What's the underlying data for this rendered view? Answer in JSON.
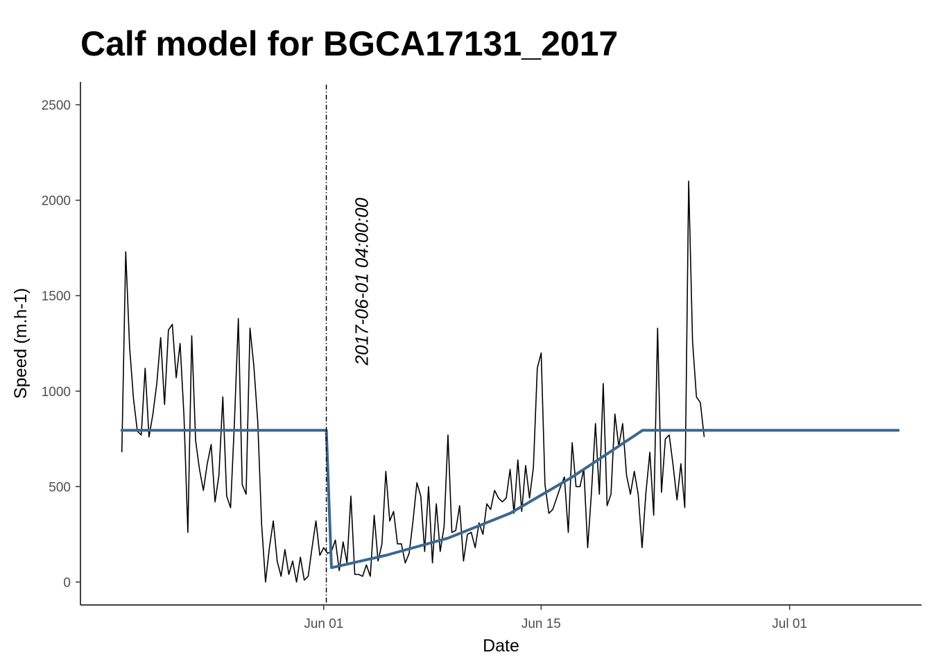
{
  "chart_data": {
    "type": "line",
    "title": "Calf model for BGCA17131_2017",
    "xlabel": "Date",
    "ylabel": "Speed (m.h-1)",
    "x_ticks": [
      {
        "date": "2017-06-01",
        "label": "Jun 01"
      },
      {
        "date": "2017-06-15",
        "label": "Jun 15"
      },
      {
        "date": "2017-07-01",
        "label": "Jul 01"
      }
    ],
    "y_ticks": [
      0,
      500,
      1000,
      1500,
      2000,
      2500
    ],
    "xlim": [
      "2017-05-16T08:00:00",
      "2017-07-09T12:00:00"
    ],
    "ylim": [
      -120,
      2620
    ],
    "grid": false,
    "legend": "none",
    "annotation": {
      "date": "2017-06-01T04:00:00",
      "label": "2017-06-01 04:00:00",
      "style": "dash-dot vertical line"
    },
    "series": [
      {
        "style": "observed",
        "color": "#000000",
        "points": [
          [
            "2017-05-19T00:00:00",
            680
          ],
          [
            "2017-05-19T06:00:00",
            1730
          ],
          [
            "2017-05-19T12:00:00",
            1230
          ],
          [
            "2017-05-19T18:00:00",
            960
          ],
          [
            "2017-05-20T00:00:00",
            790
          ],
          [
            "2017-05-20T06:00:00",
            770
          ],
          [
            "2017-05-20T12:00:00",
            1120
          ],
          [
            "2017-05-20T18:00:00",
            760
          ],
          [
            "2017-05-21T00:00:00",
            880
          ],
          [
            "2017-05-21T06:00:00",
            1040
          ],
          [
            "2017-05-21T12:00:00",
            1280
          ],
          [
            "2017-05-21T18:00:00",
            930
          ],
          [
            "2017-05-22T00:00:00",
            1320
          ],
          [
            "2017-05-22T06:00:00",
            1350
          ],
          [
            "2017-05-22T12:00:00",
            1070
          ],
          [
            "2017-05-22T18:00:00",
            1250
          ],
          [
            "2017-05-23T00:00:00",
            870
          ],
          [
            "2017-05-23T06:00:00",
            260
          ],
          [
            "2017-05-23T12:00:00",
            1290
          ],
          [
            "2017-05-23T18:00:00",
            740
          ],
          [
            "2017-05-24T00:00:00",
            590
          ],
          [
            "2017-05-24T06:00:00",
            480
          ],
          [
            "2017-05-24T12:00:00",
            620
          ],
          [
            "2017-05-24T18:00:00",
            720
          ],
          [
            "2017-05-25T00:00:00",
            420
          ],
          [
            "2017-05-25T06:00:00",
            560
          ],
          [
            "2017-05-25T12:00:00",
            970
          ],
          [
            "2017-05-25T18:00:00",
            450
          ],
          [
            "2017-05-26T00:00:00",
            390
          ],
          [
            "2017-05-26T06:00:00",
            840
          ],
          [
            "2017-05-26T12:00:00",
            1380
          ],
          [
            "2017-05-26T18:00:00",
            510
          ],
          [
            "2017-05-27T00:00:00",
            460
          ],
          [
            "2017-05-27T06:00:00",
            1330
          ],
          [
            "2017-05-27T12:00:00",
            1130
          ],
          [
            "2017-05-27T18:00:00",
            840
          ],
          [
            "2017-05-28T00:00:00",
            300
          ],
          [
            "2017-05-28T06:00:00",
            0
          ],
          [
            "2017-05-28T12:00:00",
            180
          ],
          [
            "2017-05-28T18:00:00",
            320
          ],
          [
            "2017-05-29T00:00:00",
            110
          ],
          [
            "2017-05-29T06:00:00",
            30
          ],
          [
            "2017-05-29T12:00:00",
            170
          ],
          [
            "2017-05-29T18:00:00",
            40
          ],
          [
            "2017-05-30T00:00:00",
            110
          ],
          [
            "2017-05-30T06:00:00",
            0
          ],
          [
            "2017-05-30T12:00:00",
            130
          ],
          [
            "2017-05-30T18:00:00",
            10
          ],
          [
            "2017-05-31T00:00:00",
            30
          ],
          [
            "2017-05-31T06:00:00",
            180
          ],
          [
            "2017-05-31T12:00:00",
            320
          ],
          [
            "2017-05-31T18:00:00",
            140
          ],
          [
            "2017-06-01T00:00:00",
            180
          ],
          [
            "2017-06-01T06:00:00",
            150
          ],
          [
            "2017-06-01T12:00:00",
            160
          ],
          [
            "2017-06-01T18:00:00",
            220
          ],
          [
            "2017-06-02T00:00:00",
            60
          ],
          [
            "2017-06-02T06:00:00",
            210
          ],
          [
            "2017-06-02T12:00:00",
            100
          ],
          [
            "2017-06-02T18:00:00",
            450
          ],
          [
            "2017-06-03T00:00:00",
            40
          ],
          [
            "2017-06-03T06:00:00",
            40
          ],
          [
            "2017-06-03T12:00:00",
            30
          ],
          [
            "2017-06-03T18:00:00",
            90
          ],
          [
            "2017-06-04T00:00:00",
            30
          ],
          [
            "2017-06-04T06:00:00",
            350
          ],
          [
            "2017-06-04T12:00:00",
            110
          ],
          [
            "2017-06-04T18:00:00",
            200
          ],
          [
            "2017-06-05T00:00:00",
            580
          ],
          [
            "2017-06-05T06:00:00",
            320
          ],
          [
            "2017-06-05T12:00:00",
            370
          ],
          [
            "2017-06-05T18:00:00",
            200
          ],
          [
            "2017-06-06T00:00:00",
            200
          ],
          [
            "2017-06-06T06:00:00",
            100
          ],
          [
            "2017-06-06T12:00:00",
            150
          ],
          [
            "2017-06-06T18:00:00",
            320
          ],
          [
            "2017-06-07T00:00:00",
            520
          ],
          [
            "2017-06-07T06:00:00",
            450
          ],
          [
            "2017-06-07T12:00:00",
            160
          ],
          [
            "2017-06-07T18:00:00",
            500
          ],
          [
            "2017-06-08T00:00:00",
            100
          ],
          [
            "2017-06-08T06:00:00",
            410
          ],
          [
            "2017-06-08T12:00:00",
            160
          ],
          [
            "2017-06-08T18:00:00",
            290
          ],
          [
            "2017-06-09T00:00:00",
            770
          ],
          [
            "2017-06-09T06:00:00",
            260
          ],
          [
            "2017-06-09T12:00:00",
            270
          ],
          [
            "2017-06-09T18:00:00",
            400
          ],
          [
            "2017-06-10T00:00:00",
            110
          ],
          [
            "2017-06-10T06:00:00",
            250
          ],
          [
            "2017-06-10T12:00:00",
            260
          ],
          [
            "2017-06-10T18:00:00",
            180
          ],
          [
            "2017-06-11T00:00:00",
            310
          ],
          [
            "2017-06-11T06:00:00",
            250
          ],
          [
            "2017-06-11T12:00:00",
            410
          ],
          [
            "2017-06-11T18:00:00",
            380
          ],
          [
            "2017-06-12T00:00:00",
            480
          ],
          [
            "2017-06-12T06:00:00",
            440
          ],
          [
            "2017-06-12T12:00:00",
            420
          ],
          [
            "2017-06-12T18:00:00",
            440
          ],
          [
            "2017-06-13T00:00:00",
            590
          ],
          [
            "2017-06-13T06:00:00",
            360
          ],
          [
            "2017-06-13T12:00:00",
            640
          ],
          [
            "2017-06-13T18:00:00",
            370
          ],
          [
            "2017-06-14T00:00:00",
            610
          ],
          [
            "2017-06-14T06:00:00",
            440
          ],
          [
            "2017-06-14T12:00:00",
            600
          ],
          [
            "2017-06-14T18:00:00",
            1120
          ],
          [
            "2017-06-15T00:00:00",
            1200
          ],
          [
            "2017-06-15T06:00:00",
            510
          ],
          [
            "2017-06-15T12:00:00",
            360
          ],
          [
            "2017-06-15T18:00:00",
            380
          ],
          [
            "2017-06-16T00:00:00",
            440
          ],
          [
            "2017-06-16T06:00:00",
            500
          ],
          [
            "2017-06-16T12:00:00",
            550
          ],
          [
            "2017-06-16T18:00:00",
            260
          ],
          [
            "2017-06-17T00:00:00",
            730
          ],
          [
            "2017-06-17T06:00:00",
            500
          ],
          [
            "2017-06-17T12:00:00",
            500
          ],
          [
            "2017-06-17T18:00:00",
            590
          ],
          [
            "2017-06-18T00:00:00",
            180
          ],
          [
            "2017-06-18T06:00:00",
            480
          ],
          [
            "2017-06-18T12:00:00",
            830
          ],
          [
            "2017-06-18T18:00:00",
            460
          ],
          [
            "2017-06-19T00:00:00",
            1040
          ],
          [
            "2017-06-19T06:00:00",
            400
          ],
          [
            "2017-06-19T12:00:00",
            460
          ],
          [
            "2017-06-19T18:00:00",
            880
          ],
          [
            "2017-06-20T00:00:00",
            710
          ],
          [
            "2017-06-20T06:00:00",
            830
          ],
          [
            "2017-06-20T12:00:00",
            560
          ],
          [
            "2017-06-20T18:00:00",
            460
          ],
          [
            "2017-06-21T00:00:00",
            580
          ],
          [
            "2017-06-21T06:00:00",
            460
          ],
          [
            "2017-06-21T12:00:00",
            180
          ],
          [
            "2017-06-21T18:00:00",
            470
          ],
          [
            "2017-06-22T00:00:00",
            680
          ],
          [
            "2017-06-22T06:00:00",
            350
          ],
          [
            "2017-06-22T12:00:00",
            1330
          ],
          [
            "2017-06-22T18:00:00",
            470
          ],
          [
            "2017-06-23T00:00:00",
            750
          ],
          [
            "2017-06-23T06:00:00",
            770
          ],
          [
            "2017-06-23T12:00:00",
            610
          ],
          [
            "2017-06-23T18:00:00",
            430
          ],
          [
            "2017-06-24T00:00:00",
            620
          ],
          [
            "2017-06-24T06:00:00",
            390
          ],
          [
            "2017-06-24T12:00:00",
            2100
          ],
          [
            "2017-06-24T18:00:00",
            1260
          ],
          [
            "2017-06-25T00:00:00",
            970
          ],
          [
            "2017-06-25T06:00:00",
            940
          ],
          [
            "2017-06-25T12:00:00",
            760
          ]
        ]
      },
      {
        "style": "model",
        "color": "#3a6890",
        "points": [
          [
            "2017-05-19T00:00:00",
            795
          ],
          [
            "2017-06-01T04:00:00",
            795
          ],
          [
            "2017-06-01T12:00:00",
            75
          ],
          [
            "2017-06-05T00:00:00",
            140
          ],
          [
            "2017-06-09T00:00:00",
            230
          ],
          [
            "2017-06-13T00:00:00",
            360
          ],
          [
            "2017-06-17T00:00:00",
            550
          ],
          [
            "2017-06-21T13:00:00",
            795
          ],
          [
            "2017-07-08T00:00:00",
            795
          ]
        ]
      }
    ]
  }
}
